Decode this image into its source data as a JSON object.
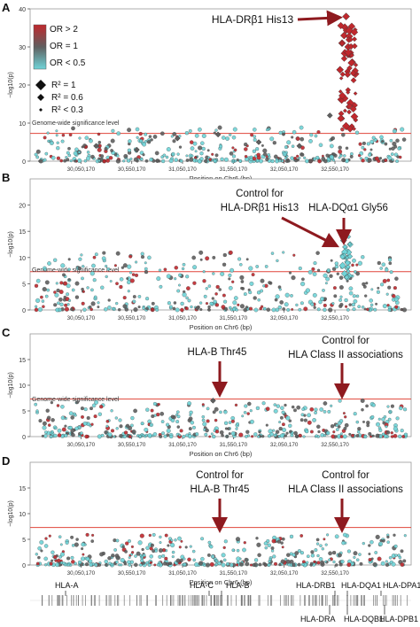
{
  "chart_data": [
    {
      "type": "scatter",
      "panel_label": "A",
      "ylabel": "−log10(p)",
      "xlabel": "Position on Chr6 (bp)",
      "xlim": [
        29550000,
        33300000
      ],
      "ylim": [
        0,
        40
      ],
      "yticks": [
        0,
        10,
        20,
        30,
        40
      ],
      "xtick_labels": [
        "30,050,170",
        "30,550,170",
        "31,050,170",
        "31,550,170",
        "32,050,170",
        "32,550,170"
      ],
      "xtick_values": [
        30050170,
        30550170,
        31050170,
        31550170,
        32050170,
        32550170
      ],
      "significance_line": 7.3,
      "significance_label": "Genome-wide significance level",
      "legend": {
        "color_labels": [
          "OR > 2",
          "OR = 1",
          "OR < 0.5"
        ],
        "size_labels": [
          "R² = 1",
          "R² = 0.6",
          "R² < 0.3"
        ]
      },
      "annotations": [
        {
          "text": "HLA-DRβ1 His13",
          "x": 32660000,
          "y": 38
        }
      ],
      "series": [
        {
          "values_x": [
            32600000,
            32620000,
            32640000,
            32660000,
            32680000,
            32700000,
            32720000
          ],
          "values_y": [
            24,
            31,
            33,
            38,
            30,
            28,
            26
          ],
          "or_class": "high"
        },
        {
          "values_x": [
            30200000,
            30600000,
            31000000,
            31400000,
            31800000,
            32200000,
            32500000
          ],
          "values_y": [
            4,
            3,
            6,
            7,
            5,
            4,
            12
          ],
          "or_class": "mixed"
        }
      ]
    },
    {
      "type": "scatter",
      "panel_label": "B",
      "ylabel": "−log10(p)",
      "xlabel": "Position on Chr6 (bp)",
      "xlim": [
        29550000,
        33300000
      ],
      "ylim": [
        0,
        25
      ],
      "yticks": [
        0,
        5,
        10,
        15,
        20
      ],
      "xtick_labels": [
        "30,050,170",
        "30,550,170",
        "31,050,170",
        "31,550,170",
        "32,050,170",
        "32,550,170"
      ],
      "xtick_values": [
        30050170,
        30550170,
        31050170,
        31550170,
        32050170,
        32550170
      ],
      "significance_line": 7.3,
      "significance_label": "Genome-wide significance level",
      "annotations": [
        {
          "text": "Control for",
          "x": 31950000,
          "y": 22
        },
        {
          "text": "HLA-DRβ1 His13",
          "x": 31950000,
          "y": 19
        },
        {
          "text": "HLA-DQα1 Gly56",
          "x": 32850000,
          "y": 19
        }
      ],
      "series": [
        {
          "values_x": [
            32640000,
            32650000,
            32660000,
            32670000
          ],
          "values_y": [
            14,
            12,
            10,
            8
          ],
          "or_class": "low"
        }
      ]
    },
    {
      "type": "scatter",
      "panel_label": "C",
      "ylabel": "−log10(p)",
      "xlabel": "Position on Chr6 (bp)",
      "xlim": [
        29550000,
        33300000
      ],
      "ylim": [
        0,
        20
      ],
      "yticks": [
        0,
        5,
        10,
        15
      ],
      "xtick_labels": [
        "30,050,170",
        "30,550,170",
        "31,050,170",
        "31,550,170",
        "32,050,170",
        "32,550,170"
      ],
      "xtick_values": [
        30050170,
        30550170,
        31050170,
        31550170,
        32050170,
        32550170
      ],
      "significance_line": 7.3,
      "significance_label": "Genome-wide significance level",
      "annotations": [
        {
          "text": "HLA-B Thr45",
          "x": 31350000,
          "y": 15
        },
        {
          "text": "Control for",
          "x": 32600000,
          "y": 18
        },
        {
          "text": "HLA Class II associations",
          "x": 32600000,
          "y": 15
        }
      ],
      "series": [
        {
          "values_x": [
            31350000
          ],
          "values_y": [
            7
          ],
          "or_class": "mixed"
        }
      ]
    },
    {
      "type": "scatter",
      "panel_label": "D",
      "ylabel": "−log10(p)",
      "xlabel": "Position on Chr6 (bp)",
      "xlim": [
        29550000,
        33300000
      ],
      "ylim": [
        0,
        20
      ],
      "yticks": [
        0,
        5,
        10,
        15
      ],
      "xtick_labels": [
        "30,050,170",
        "30,550,170",
        "31,050,170",
        "31,550,170",
        "32,050,170",
        "32,550,170"
      ],
      "xtick_values": [
        30050170,
        30550170,
        31050170,
        31550170,
        32050170,
        32550170
      ],
      "significance_line": 7.3,
      "significance_label": "",
      "annotations": [
        {
          "text": "Control for",
          "x": 31350000,
          "y": 18
        },
        {
          "text": "HLA-B Thr45",
          "x": 31350000,
          "y": 15
        },
        {
          "text": "Control for",
          "x": 32600000,
          "y": 18
        },
        {
          "text": "HLA Class II associations",
          "x": 32600000,
          "y": 15
        }
      ],
      "series": []
    }
  ],
  "gene_track": {
    "genes_top": [
      "HLA-A",
      "HLA-C",
      "HLA-B",
      "HLA-DRB1",
      "HLA-DQA1",
      "HLA-DPA1"
    ],
    "genes_bottom": [
      "HLA-DRA",
      "HLA-DQB1",
      "HLA-DPB1"
    ]
  },
  "colors": {
    "or_high": "#c0282d",
    "or_mid": "#5f5f5f",
    "or_low": "#6fd4d8",
    "sig_line": "#e0443a",
    "arrow": "#8e1a1f"
  }
}
